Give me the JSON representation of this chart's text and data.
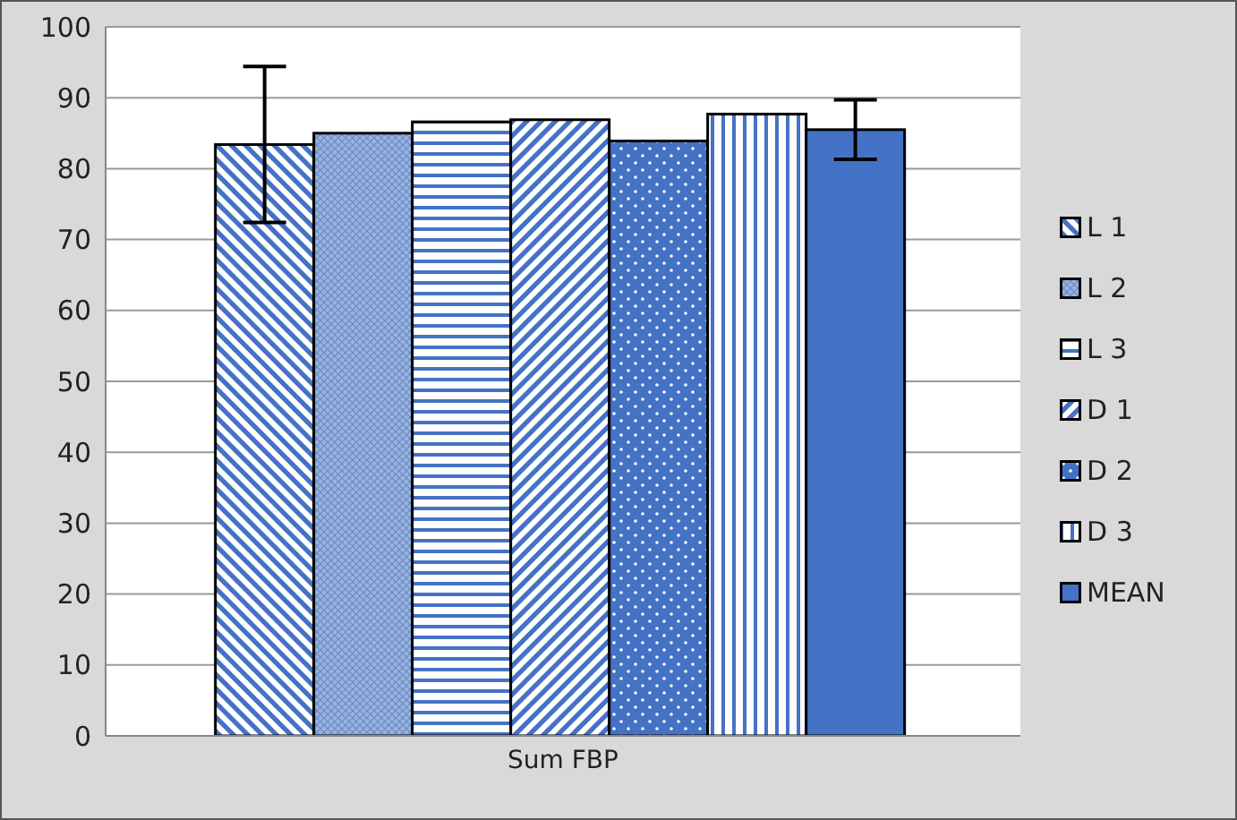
{
  "chart_data": {
    "type": "bar",
    "categories": [
      "Sum FBP"
    ],
    "series": [
      {
        "name": "L 1",
        "color": "#4472c4",
        "values": [
          83.4
        ],
        "errors": [
          11
        ]
      },
      {
        "name": "L 2",
        "color": "#4472c4",
        "values": [
          85.0
        ]
      },
      {
        "name": "L 3",
        "color": "#4472c4",
        "values": [
          86.6
        ]
      },
      {
        "name": "D 1",
        "color": "#4472c4",
        "values": [
          86.9
        ]
      },
      {
        "name": "D 2",
        "color": "#4472c4",
        "values": [
          83.9
        ]
      },
      {
        "name": "D 3",
        "color": "#4472c4",
        "values": [
          87.7
        ]
      },
      {
        "name": "MEAN",
        "color": "#4472c4",
        "values": [
          85.5
        ],
        "errors": [
          4.2
        ]
      }
    ],
    "ylim": [
      0,
      100
    ],
    "yticks": [
      0,
      10,
      20,
      30,
      40,
      50,
      60,
      70,
      80,
      90,
      100
    ],
    "grid": "y",
    "legend": "right"
  }
}
